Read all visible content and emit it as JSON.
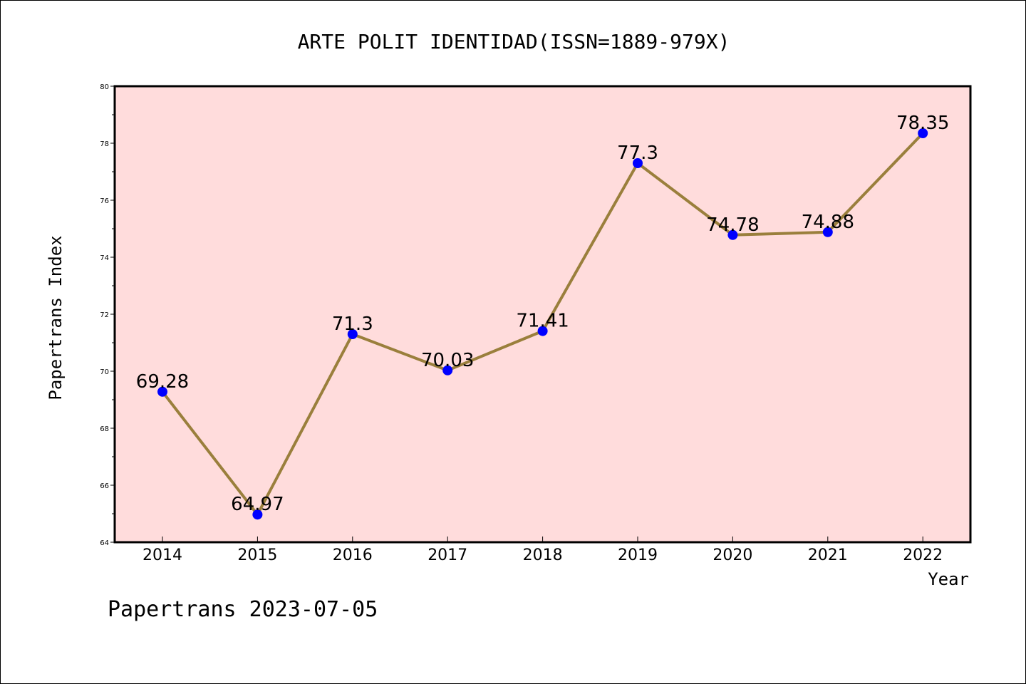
{
  "chart_data": {
    "type": "line",
    "title": "ARTE POLIT IDENTIDAD(ISSN=1889-979X)",
    "xlabel": "Year",
    "ylabel": "Papertrans Index",
    "categories": [
      "2014",
      "2015",
      "2016",
      "2017",
      "2018",
      "2019",
      "2020",
      "2021",
      "2022"
    ],
    "series": [
      {
        "values": [
          69.28,
          64.97,
          71.3,
          70.03,
          71.41,
          77.3,
          74.78,
          74.88,
          78.35
        ],
        "labels": [
          "69.28",
          "64.97",
          "71.3",
          "70.03",
          "71.41",
          "77.3",
          "74.78",
          "74.88",
          "78.35"
        ]
      }
    ],
    "ylim": [
      64,
      80
    ],
    "yticks": [
      "64",
      "66",
      "68",
      "70",
      "72",
      "74",
      "76",
      "78",
      "80"
    ],
    "grid": false,
    "legend": "none",
    "colors": {
      "plot_background": "#ffdcdc",
      "line": "#9a7f3c",
      "marker": "#0000ff"
    }
  },
  "footer": {
    "watermark": "Papertrans 2023-07-05"
  }
}
